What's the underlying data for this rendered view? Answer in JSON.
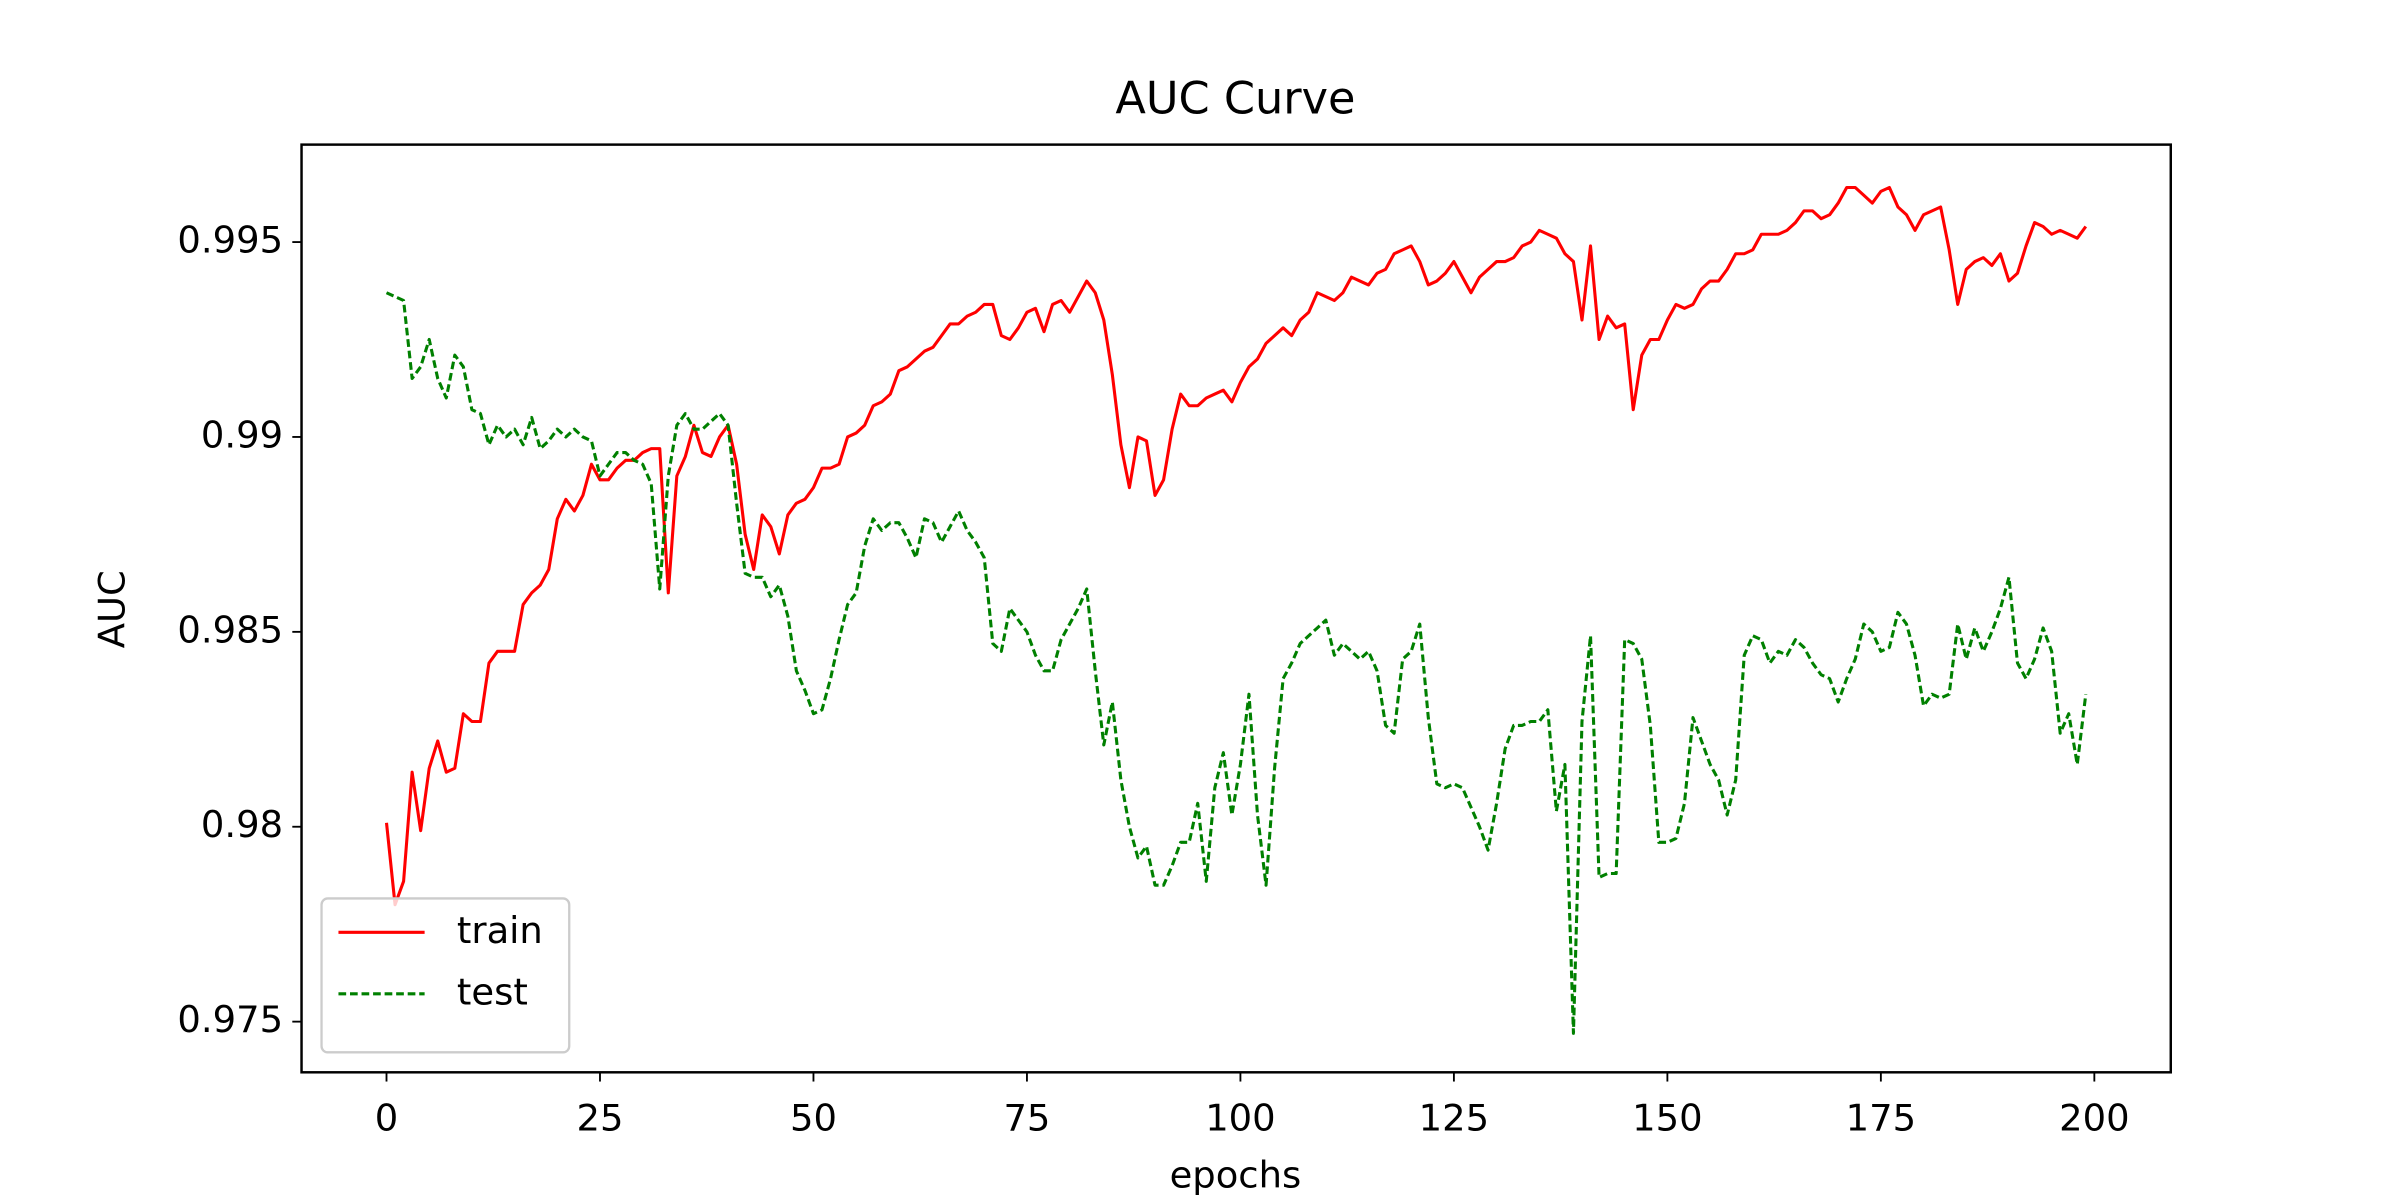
{
  "chart_data": {
    "type": "line",
    "title": "AUC Curve",
    "x_label": "epochs",
    "y_label": "AUC",
    "x": [
      0,
      1,
      2,
      3,
      4,
      5,
      6,
      7,
      8,
      9,
      10,
      11,
      12,
      13,
      14,
      15,
      16,
      17,
      18,
      19,
      20,
      21,
      22,
      23,
      24,
      25,
      26,
      27,
      28,
      29,
      30,
      31,
      32,
      33,
      34,
      35,
      36,
      37,
      38,
      39,
      40,
      41,
      42,
      43,
      44,
      45,
      46,
      47,
      48,
      49,
      50,
      51,
      52,
      53,
      54,
      55,
      56,
      57,
      58,
      59,
      60,
      61,
      62,
      63,
      64,
      65,
      66,
      67,
      68,
      69,
      70,
      71,
      72,
      73,
      74,
      75,
      76,
      77,
      78,
      79,
      80,
      81,
      82,
      83,
      84,
      85,
      86,
      87,
      88,
      89,
      90,
      91,
      92,
      93,
      94,
      95,
      96,
      97,
      98,
      99,
      100,
      101,
      102,
      103,
      104,
      105,
      106,
      107,
      108,
      109,
      110,
      111,
      112,
      113,
      114,
      115,
      116,
      117,
      118,
      119,
      120,
      121,
      122,
      123,
      124,
      125,
      126,
      127,
      128,
      129,
      130,
      131,
      132,
      133,
      134,
      135,
      136,
      137,
      138,
      139,
      140,
      141,
      142,
      143,
      144,
      145,
      146,
      147,
      148,
      149,
      150,
      151,
      152,
      153,
      154,
      155,
      156,
      157,
      158,
      159,
      160,
      161,
      162,
      163,
      164,
      165,
      166,
      167,
      168,
      169,
      170,
      171,
      172,
      173,
      174,
      175,
      176,
      177,
      178,
      179,
      180,
      181,
      182,
      183,
      184,
      185,
      186,
      187,
      188,
      189,
      190,
      191,
      192,
      193,
      194,
      195,
      196,
      197,
      198,
      199
    ],
    "series": [
      {
        "name": "train",
        "color": "#ff0000",
        "dash": "solid",
        "values": [
          0.9801,
          0.978,
          0.9786,
          0.9814,
          0.9799,
          0.9815,
          0.9822,
          0.9814,
          0.9815,
          0.9829,
          0.9827,
          0.9827,
          0.9842,
          0.9845,
          0.9845,
          0.9845,
          0.9857,
          0.986,
          0.9862,
          0.9866,
          0.9879,
          0.9884,
          0.9881,
          0.9885,
          0.9893,
          0.9889,
          0.9889,
          0.9892,
          0.9894,
          0.9894,
          0.9896,
          0.9897,
          0.9897,
          0.986,
          0.989,
          0.9895,
          0.9903,
          0.9896,
          0.9895,
          0.99,
          0.9903,
          0.9893,
          0.9875,
          0.9866,
          0.988,
          0.9877,
          0.987,
          0.988,
          0.9883,
          0.9884,
          0.9887,
          0.9892,
          0.9892,
          0.9893,
          0.99,
          0.9901,
          0.9903,
          0.9908,
          0.9909,
          0.9911,
          0.9917,
          0.9918,
          0.992,
          0.9922,
          0.9923,
          0.9926,
          0.9929,
          0.9929,
          0.9931,
          0.9932,
          0.9934,
          0.9934,
          0.9926,
          0.9925,
          0.9928,
          0.9932,
          0.9933,
          0.9927,
          0.9934,
          0.9935,
          0.9932,
          0.9936,
          0.994,
          0.9937,
          0.993,
          0.9916,
          0.9898,
          0.9887,
          0.99,
          0.9899,
          0.9885,
          0.9889,
          0.9902,
          0.9911,
          0.9908,
          0.9908,
          0.991,
          0.9911,
          0.9912,
          0.9909,
          0.9914,
          0.9918,
          0.992,
          0.9924,
          0.9926,
          0.9928,
          0.9926,
          0.993,
          0.9932,
          0.9937,
          0.9936,
          0.9935,
          0.9937,
          0.9941,
          0.994,
          0.9939,
          0.9942,
          0.9943,
          0.9947,
          0.9948,
          0.9949,
          0.9945,
          0.9939,
          0.994,
          0.9942,
          0.9945,
          0.9941,
          0.9937,
          0.9941,
          0.9943,
          0.9945,
          0.9945,
          0.9946,
          0.9949,
          0.995,
          0.9953,
          0.9952,
          0.9951,
          0.9947,
          0.9945,
          0.993,
          0.9949,
          0.9925,
          0.9931,
          0.9928,
          0.9929,
          0.9907,
          0.9921,
          0.9925,
          0.9925,
          0.993,
          0.9934,
          0.9933,
          0.9934,
          0.9938,
          0.994,
          0.994,
          0.9943,
          0.9947,
          0.9947,
          0.9948,
          0.9952,
          0.9952,
          0.9952,
          0.9953,
          0.9955,
          0.9958,
          0.9958,
          0.9956,
          0.9957,
          0.996,
          0.9964,
          0.9964,
          0.9962,
          0.996,
          0.9963,
          0.9964,
          0.9959,
          0.9957,
          0.9953,
          0.9957,
          0.9958,
          0.9959,
          0.9948,
          0.9934,
          0.9943,
          0.9945,
          0.9946,
          0.9944,
          0.9947,
          0.994,
          0.9942,
          0.9949,
          0.9955,
          0.9954,
          0.9952,
          0.9953,
          0.9952,
          0.9951,
          0.9954
        ]
      },
      {
        "name": "test",
        "color": "#008000",
        "dash": "dashed",
        "values": [
          0.9937,
          0.9936,
          0.9935,
          0.9915,
          0.9918,
          0.9925,
          0.9915,
          0.991,
          0.9921,
          0.9918,
          0.9907,
          0.9906,
          0.9898,
          0.9903,
          0.99,
          0.9902,
          0.9898,
          0.9905,
          0.9897,
          0.9899,
          0.9902,
          0.99,
          0.9902,
          0.99,
          0.9899,
          0.989,
          0.9893,
          0.9896,
          0.9896,
          0.9894,
          0.9893,
          0.9888,
          0.9861,
          0.989,
          0.9903,
          0.9906,
          0.9902,
          0.9902,
          0.9904,
          0.9906,
          0.9903,
          0.9883,
          0.9865,
          0.9864,
          0.9864,
          0.9859,
          0.9862,
          0.9854,
          0.984,
          0.9835,
          0.9829,
          0.983,
          0.9838,
          0.9848,
          0.9857,
          0.986,
          0.9872,
          0.9879,
          0.9876,
          0.9878,
          0.9878,
          0.9874,
          0.9869,
          0.9879,
          0.9878,
          0.9873,
          0.9877,
          0.9881,
          0.9876,
          0.9873,
          0.9869,
          0.9847,
          0.9845,
          0.9856,
          0.9853,
          0.985,
          0.9844,
          0.984,
          0.984,
          0.9848,
          0.9852,
          0.9856,
          0.9861,
          0.984,
          0.9821,
          0.9832,
          0.9812,
          0.98,
          0.9792,
          0.9795,
          0.9785,
          0.9785,
          0.979,
          0.9796,
          0.9796,
          0.9806,
          0.9786,
          0.981,
          0.9819,
          0.9803,
          0.9816,
          0.9834,
          0.9803,
          0.9785,
          0.9815,
          0.9838,
          0.9842,
          0.9847,
          0.9849,
          0.9851,
          0.9853,
          0.9844,
          0.9847,
          0.9845,
          0.9843,
          0.9845,
          0.984,
          0.9826,
          0.9824,
          0.9843,
          0.9845,
          0.9852,
          0.9828,
          0.9811,
          0.981,
          0.9811,
          0.981,
          0.9805,
          0.98,
          0.9794,
          0.9806,
          0.982,
          0.9826,
          0.9826,
          0.9827,
          0.9827,
          0.983,
          0.9804,
          0.9816,
          0.9747,
          0.9827,
          0.9849,
          0.9787,
          0.9788,
          0.9788,
          0.9848,
          0.9847,
          0.9843,
          0.9826,
          0.9796,
          0.9796,
          0.9797,
          0.9806,
          0.9828,
          0.9822,
          0.9816,
          0.9812,
          0.9803,
          0.9812,
          0.9844,
          0.9849,
          0.9848,
          0.9842,
          0.9845,
          0.9844,
          0.9848,
          0.9846,
          0.9842,
          0.9839,
          0.9838,
          0.9832,
          0.9838,
          0.9843,
          0.9852,
          0.985,
          0.9845,
          0.9846,
          0.9855,
          0.9852,
          0.9844,
          0.9831,
          0.9834,
          0.9833,
          0.9834,
          0.9852,
          0.9843,
          0.9851,
          0.9845,
          0.985,
          0.9856,
          0.9864,
          0.9842,
          0.9838,
          0.9843,
          0.9851,
          0.9845,
          0.9824,
          0.9829,
          0.9816,
          0.9834
        ]
      }
    ],
    "xlim": [
      -9.95,
      208.95
    ],
    "xticks": [
      0,
      25,
      50,
      75,
      100,
      125,
      150,
      175,
      200
    ],
    "ylim": [
      0.9737,
      0.9975
    ],
    "yticks": [
      0.975,
      0.98,
      0.985,
      0.99,
      0.995
    ],
    "grid": false,
    "legend": "lower left"
  }
}
